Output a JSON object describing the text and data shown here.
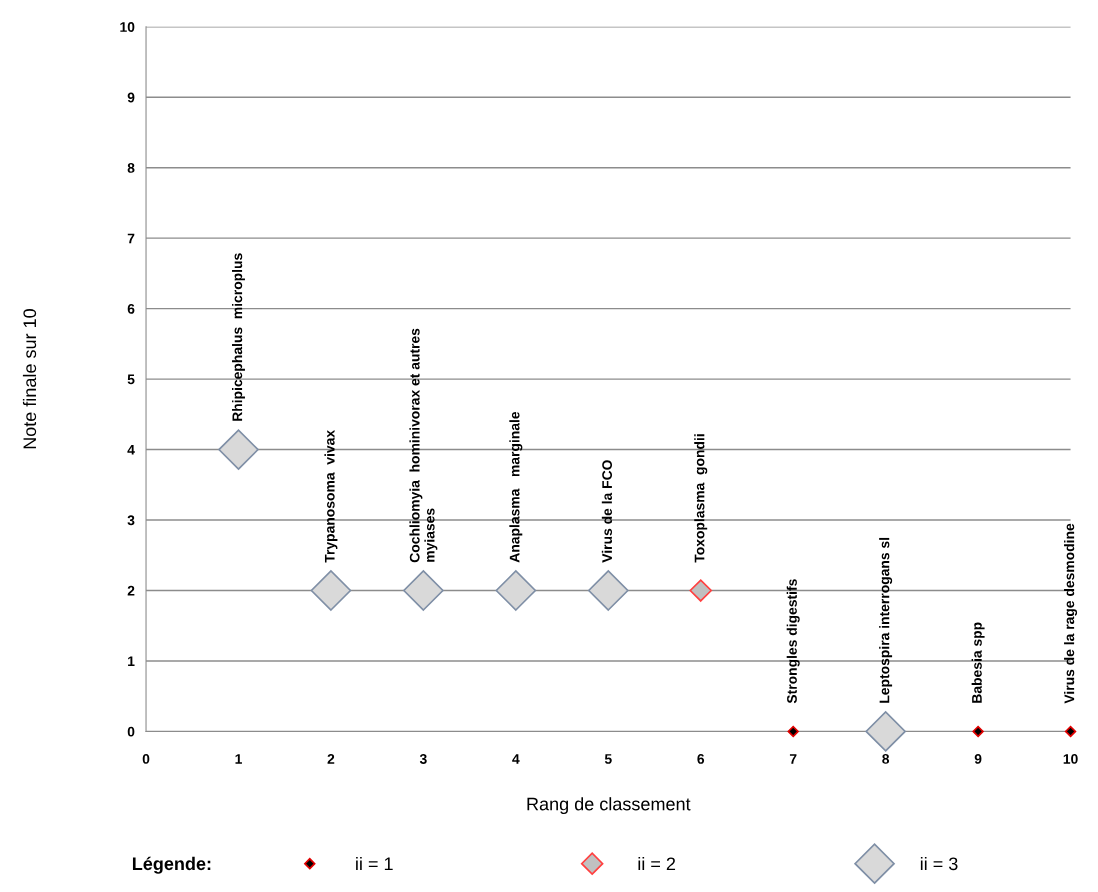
{
  "chart_data": {
    "type": "scatter",
    "xlabel": "Rang de classement",
    "ylabel": "Note finale sur 10",
    "legend_title": "Légende:",
    "xlim": [
      0,
      10
    ],
    "ylim": [
      0,
      10
    ],
    "xticks": [
      0,
      1,
      2,
      3,
      4,
      5,
      6,
      7,
      8,
      9,
      10
    ],
    "yticks": [
      0,
      1,
      2,
      3,
      4,
      5,
      6,
      7,
      8,
      9,
      10
    ],
    "grid": "y",
    "legend": "bottom",
    "marker": "diamond",
    "series": [
      {
        "name": "ii = 1",
        "color": "#000000",
        "x": [
          7,
          9,
          10
        ],
        "values": [
          0,
          0,
          0
        ]
      },
      {
        "name": "ii = 2",
        "color": "#c0c0c0",
        "x": [
          6
        ],
        "values": [
          2
        ]
      },
      {
        "name": "ii = 3",
        "color": "#d9d9d9",
        "x": [
          1,
          2,
          3,
          4,
          5,
          8
        ],
        "values": [
          4,
          2,
          2,
          2,
          2,
          0
        ]
      }
    ],
    "annotations": [
      {
        "text": "Rhipicephalus  microplus",
        "x": 1,
        "y": 4
      },
      {
        "text": "Trypanosoma  vivax",
        "x": 2,
        "y": 2
      },
      {
        "text": "Cochliomyia  hominivorax et autres\nmyiases",
        "x": 3,
        "y": 2
      },
      {
        "text": "Anaplasma   marginale",
        "x": 4,
        "y": 2
      },
      {
        "text": "Virus de la FCO",
        "x": 5,
        "y": 2
      },
      {
        "text": "Toxoplasma  gondii",
        "x": 6,
        "y": 2
      },
      {
        "text": "Strongles digestifs",
        "x": 7,
        "y": 0
      },
      {
        "text": "Leptospira interrogans sl",
        "x": 8,
        "y": 0
      },
      {
        "text": "Babesia spp",
        "x": 9,
        "y": 0
      },
      {
        "text": "Virus de la rage desmodine",
        "x": 10,
        "y": 0
      }
    ]
  }
}
